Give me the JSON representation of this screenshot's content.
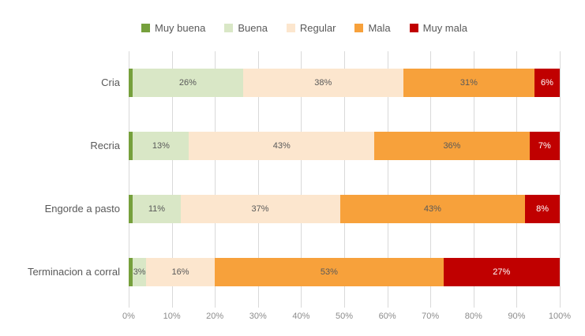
{
  "chart_data": {
    "type": "bar",
    "orientation": "horizontal-stacked",
    "title": "",
    "xlabel": "",
    "ylabel": "",
    "xlim": [
      0,
      100
    ],
    "grid": true,
    "legend_position": "top",
    "label_suffix": "%",
    "label_min_value": 2,
    "categories": [
      "Cria",
      "Recria",
      "Engorde a pasto",
      "Terminacion a corral"
    ],
    "series": [
      {
        "name": "Muy buena",
        "color": "#76A03C",
        "values": [
          1,
          1,
          1,
          1
        ]
      },
      {
        "name": "Buena",
        "color": "#D9E7C6",
        "values": [
          26,
          13,
          11,
          3
        ]
      },
      {
        "name": "Regular",
        "color": "#FCE6CE",
        "values": [
          38,
          43,
          37,
          16
        ]
      },
      {
        "name": "Mala",
        "color": "#F7A13B",
        "values": [
          31,
          36,
          43,
          53
        ]
      },
      {
        "name": "Muy mala",
        "color": "#C00000",
        "values": [
          6,
          7,
          8,
          27
        ],
        "label_color": "#FFFFFF"
      }
    ],
    "x_ticks": [
      "0%",
      "10%",
      "20%",
      "30%",
      "40%",
      "50%",
      "60%",
      "70%",
      "80%",
      "90%",
      "100%"
    ]
  },
  "style": {
    "segment_label_color": "#595959",
    "gridline_color": "#d9d9d9",
    "tick_label_color": "#8c8c8c",
    "category_label_color": "#595959",
    "legend_text_color": "#595959",
    "background": "#ffffff"
  }
}
